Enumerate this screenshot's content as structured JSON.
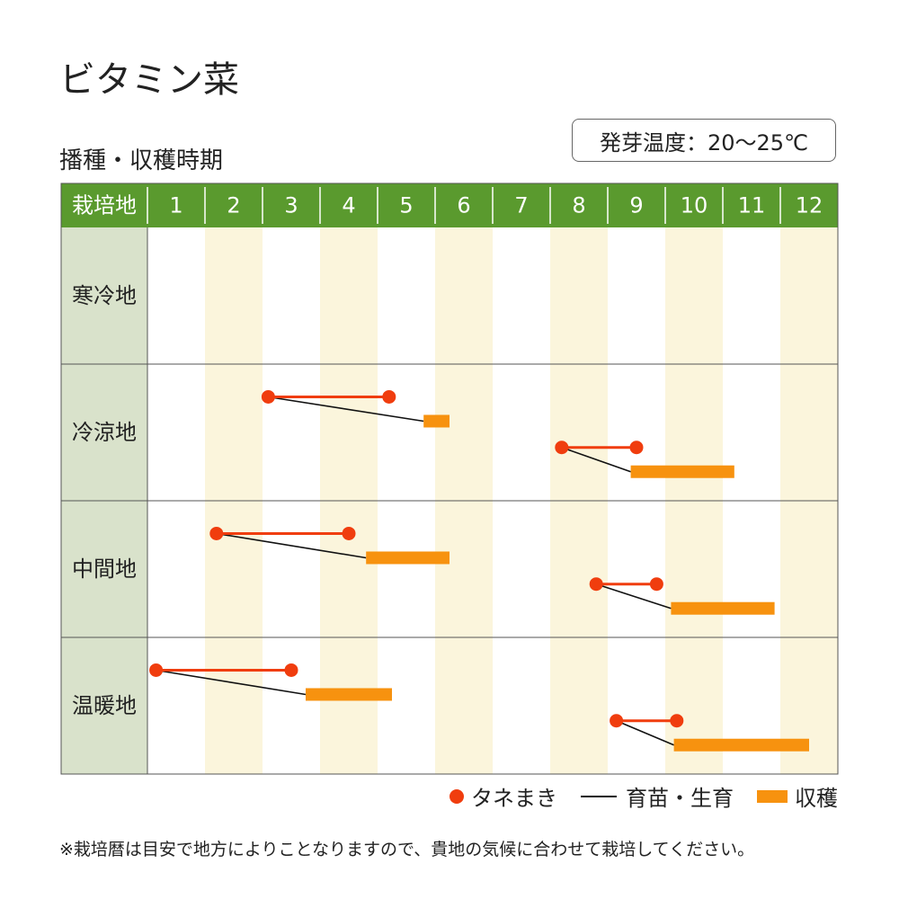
{
  "title": "ビタミン菜",
  "subtitle": "播種・収穫時期",
  "germination_temp": "発芽温度：20～25℃",
  "legend": {
    "sowing": "タネまき",
    "growing": "育苗・生育",
    "harvest": "収穫"
  },
  "footnote": "※栽培暦は目安で地方によりことなりますので、貴地の気候に合わせて栽培してください。",
  "colors": {
    "header_green": "#5a9a2e",
    "region_col_bg": "#d9e2cb",
    "stripe_yellow": "#fbf5dc",
    "sowing_red": "#f03d0e",
    "harvest_orange": "#f7920f",
    "growing_line": "#111111",
    "grid": "#555555"
  },
  "chart_data": {
    "type": "gantt",
    "header_label": "栽培地",
    "months": [
      "1",
      "2",
      "3",
      "4",
      "5",
      "6",
      "7",
      "8",
      "9",
      "10",
      "11",
      "12"
    ],
    "regions": [
      {
        "name": "寒冷地",
        "schedules": []
      },
      {
        "name": "冷涼地",
        "schedules": [
          {
            "sow_start": 3.1,
            "sow_end": 5.2,
            "harvest_start": 5.8,
            "harvest_end": 6.25
          },
          {
            "sow_start": 8.2,
            "sow_end": 9.5,
            "harvest_start": 9.4,
            "harvest_end": 11.2
          }
        ]
      },
      {
        "name": "中間地",
        "schedules": [
          {
            "sow_start": 2.2,
            "sow_end": 4.5,
            "harvest_start": 4.8,
            "harvest_end": 6.25
          },
          {
            "sow_start": 8.8,
            "sow_end": 9.85,
            "harvest_start": 10.1,
            "harvest_end": 11.9
          }
        ]
      },
      {
        "name": "温暖地",
        "schedules": [
          {
            "sow_start": 1.15,
            "sow_end": 3.5,
            "harvest_start": 3.75,
            "harvest_end": 5.25
          },
          {
            "sow_start": 9.15,
            "sow_end": 10.2,
            "harvest_start": 10.15,
            "harvest_end": 12.5
          }
        ]
      }
    ]
  }
}
